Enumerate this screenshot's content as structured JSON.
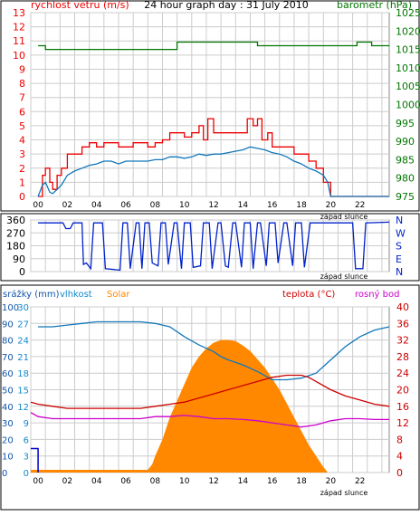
{
  "chart_data": [
    {
      "type": "line",
      "title": "24 hour graph day : 31 July 2010",
      "left_axis_label": "rychlost vetru (m/s)",
      "right_axis_label": "barometr (hPa)",
      "left_ticks": [
        "0",
        "1",
        "2",
        "3",
        "4",
        "5",
        "6",
        "7",
        "8",
        "9",
        "10",
        "11",
        "12",
        "13"
      ],
      "right_ticks": [
        "975",
        "980",
        "985",
        "990",
        "995",
        "1000",
        "1005",
        "1010",
        "1015",
        "1020",
        "1025"
      ],
      "x_ticks": [
        "00",
        "02",
        "04",
        "06",
        "08",
        "10",
        "12",
        "14",
        "16",
        "18",
        "20",
        "22"
      ],
      "sunset_label": "západ slunce",
      "colors": {
        "gust": "#ee0000",
        "wind": "#1177bb",
        "pressure": "#007700",
        "grid": "#cccccc",
        "left_axis": "#ee0000",
        "right_axis": "#007700"
      },
      "series": [
        {
          "name": "pressure",
          "x": [
            0,
            0.3,
            0.5,
            9.3,
            9.5,
            14.7,
            15,
            17.3,
            17.6,
            20.5,
            20.8,
            21.5,
            21.8,
            22.5,
            22.8,
            24
          ],
          "y": [
            1016,
            1016,
            1015,
            1015,
            1017,
            1017,
            1016,
            1016,
            1016,
            1016,
            1016,
            1016,
            1017,
            1017,
            1016,
            1016
          ]
        },
        {
          "name": "gust",
          "x": [
            0,
            0.3,
            0.5,
            0.8,
            1,
            1.3,
            1.6,
            2,
            2.5,
            3,
            3.5,
            4,
            4.5,
            5,
            5.5,
            6,
            6.5,
            7,
            7.5,
            8,
            8.5,
            9,
            9.5,
            10,
            10.5,
            11,
            11.3,
            11.6,
            12,
            12.5,
            13,
            13.5,
            14,
            14.3,
            14.7,
            15,
            15.3,
            15.7,
            16,
            16.5,
            17,
            17.5,
            18,
            18.5,
            19,
            19.5,
            20,
            20.3,
            24
          ],
          "y": [
            0,
            1.5,
            2,
            1,
            0.5,
            1.5,
            2,
            3,
            3,
            3.5,
            3.8,
            3.5,
            3.8,
            3.8,
            3.5,
            3.5,
            3.8,
            3.8,
            3.5,
            3.8,
            4,
            4.5,
            4.5,
            4.2,
            4.5,
            5,
            4,
            5.5,
            4.5,
            4.5,
            4.5,
            4.5,
            4.5,
            5.5,
            5,
            5.5,
            4,
            4.5,
            3.5,
            3.5,
            3.5,
            3,
            3,
            2.5,
            2,
            1,
            0,
            0,
            0
          ]
        },
        {
          "name": "wind",
          "x": [
            0,
            0.3,
            0.5,
            0.8,
            1,
            1.3,
            1.6,
            2,
            2.5,
            3,
            3.5,
            4,
            4.5,
            5,
            5.5,
            6,
            6.5,
            7,
            7.5,
            8,
            8.5,
            9,
            9.5,
            10,
            10.5,
            11,
            11.5,
            12,
            12.5,
            13,
            13.5,
            14,
            14.5,
            15,
            15.5,
            16,
            16.5,
            17,
            17.5,
            18,
            18.5,
            19,
            19.5,
            19.8,
            20,
            24
          ],
          "y": [
            0,
            0.8,
            1,
            0.3,
            0.2,
            0.5,
            0.8,
            1.5,
            1.8,
            2,
            2.2,
            2.3,
            2.5,
            2.5,
            2.3,
            2.5,
            2.5,
            2.5,
            2.5,
            2.6,
            2.6,
            2.8,
            2.8,
            2.7,
            2.8,
            3,
            2.9,
            3,
            3,
            3.1,
            3.2,
            3.3,
            3.5,
            3.4,
            3.3,
            3.1,
            3,
            2.8,
            2.5,
            2.3,
            2,
            1.8,
            1.5,
            1,
            0,
            0
          ]
        }
      ]
    },
    {
      "type": "line",
      "left_ticks": [
        "360",
        "270",
        "180",
        "90",
        "0"
      ],
      "right_ticks": [
        "N",
        "W",
        "S",
        "E",
        "N"
      ],
      "sunset_label": "západ slunce",
      "colors": {
        "direction": "#0022cc"
      },
      "series": [
        {
          "name": "direction",
          "x": [
            0,
            1.7,
            1.9,
            2.2,
            2.4,
            2.8,
            3,
            3.1,
            3.3,
            3.6,
            3.8,
            4.4,
            4.6,
            5.6,
            5.8,
            6.1,
            6.3,
            6.7,
            6.9,
            7.1,
            7.3,
            7.6,
            7.8,
            8.2,
            8.4,
            8.7,
            8.9,
            9.3,
            9.5,
            9.8,
            10,
            10.4,
            10.6,
            11.1,
            11.3,
            11.7,
            11.9,
            12.3,
            12.5,
            12.8,
            13,
            13.3,
            13.5,
            13.9,
            14.1,
            14.5,
            14.7,
            15,
            15.2,
            15.6,
            15.8,
            16.2,
            16.4,
            16.8,
            17,
            17.4,
            17.6,
            18,
            18.2,
            18.6,
            18.8,
            19.3,
            19.5,
            19.9,
            20.2,
            21.5,
            21.7,
            22.2,
            22.4,
            24
          ],
          "y": [
            340,
            340,
            300,
            300,
            340,
            340,
            340,
            50,
            60,
            20,
            340,
            340,
            20,
            10,
            340,
            340,
            20,
            340,
            340,
            20,
            340,
            340,
            60,
            40,
            340,
            340,
            50,
            340,
            340,
            20,
            340,
            340,
            30,
            40,
            340,
            340,
            20,
            340,
            340,
            40,
            30,
            340,
            340,
            30,
            340,
            340,
            20,
            340,
            340,
            40,
            340,
            340,
            60,
            340,
            340,
            40,
            340,
            340,
            30,
            340,
            340,
            340,
            340,
            340,
            340,
            340,
            20,
            20,
            340,
            345
          ]
        }
      ]
    },
    {
      "type": "area",
      "legend": [
        "srážky (mm)",
        "vlhkost",
        "Solar",
        "teplota (°C)",
        "rosný bod"
      ],
      "left_ticks_rain": [
        "0",
        "10",
        "20",
        "30",
        "40",
        "50",
        "60",
        "70",
        "80",
        "90",
        "100"
      ],
      "left_ticks_humidity": [
        "0",
        "3",
        "6",
        "9",
        "12",
        "15",
        "18",
        "21",
        "24",
        "27",
        "30"
      ],
      "right_ticks_temp": [
        "0",
        "4",
        "8",
        "12",
        "16",
        "20",
        "24",
        "28",
        "32",
        "36",
        "40"
      ],
      "x_ticks": [
        "00",
        "02",
        "04",
        "06",
        "08",
        "10",
        "12",
        "14",
        "16",
        "18",
        "20",
        "22"
      ],
      "sunset_label": "západ slunce",
      "colors": {
        "rain": "#0000cc",
        "humidity": "#1177bb",
        "solar": "#ff8800",
        "temperature": "#cc0000",
        "dewpoint": "#cc00cc",
        "rain_axis": "#1155aa",
        "humidity_axis": "#1188cc",
        "temp_axis": "#cc0000"
      },
      "series": [
        {
          "name": "srážky (mm)",
          "x": [
            -0.5,
            0
          ],
          "y": [
            14.5,
            14.5
          ]
        },
        {
          "name": "vlhkost",
          "x": [
            0,
            1,
            2,
            3,
            4,
            5,
            6,
            7,
            8,
            9,
            10,
            11,
            12,
            12.5,
            13,
            14,
            15,
            16,
            17,
            18,
            19,
            20,
            21,
            22,
            23,
            24
          ],
          "y": [
            88,
            88,
            89,
            90,
            91,
            91,
            91,
            91,
            90,
            88,
            82,
            77,
            73,
            70,
            68,
            65,
            61,
            56,
            56,
            57,
            60,
            68,
            76,
            82,
            86,
            88
          ]
        },
        {
          "name": "Solar",
          "x": [
            -0.5,
            7.5,
            7.8,
            8,
            8.5,
            9,
            9.5,
            10,
            10.5,
            11,
            11.5,
            12,
            12.5,
            13,
            13.5,
            14,
            14.5,
            15,
            15.5,
            16,
            16.5,
            17,
            17.5,
            18,
            18.5,
            19,
            19.5,
            19.8,
            24
          ],
          "y": [
            0.5,
            0.5,
            1.5,
            3,
            6,
            10,
            13,
            16,
            19,
            21,
            22.5,
            23.5,
            24,
            24,
            23.8,
            23,
            22,
            20.5,
            19,
            17,
            15,
            12.5,
            10,
            7.5,
            5,
            3,
            1,
            0,
            0
          ]
        },
        {
          "name": "teplota (°C)",
          "x": [
            -0.5,
            0,
            1,
            2,
            3,
            4,
            5,
            6,
            7,
            8,
            9,
            10,
            11,
            12,
            13,
            14,
            15,
            16,
            17,
            18,
            18.5,
            19,
            20,
            21,
            22,
            23,
            24
          ],
          "y": [
            17,
            16.5,
            16,
            15.5,
            15.5,
            15.5,
            15.5,
            15.5,
            15.5,
            16,
            16.5,
            17,
            18,
            19,
            20,
            21,
            22,
            23,
            23.5,
            23.5,
            23,
            22,
            20,
            18.5,
            17.5,
            16.5,
            16
          ]
        },
        {
          "name": "rosný bod",
          "x": [
            -0.5,
            0,
            1,
            2,
            3,
            4,
            5,
            6,
            7,
            8,
            9,
            10,
            11,
            12,
            13,
            14,
            15,
            16,
            17,
            18,
            19,
            20,
            21,
            22,
            23,
            24
          ],
          "y": [
            14.5,
            13.5,
            13,
            13,
            13,
            13,
            13,
            13,
            13,
            13.5,
            13.5,
            13.8,
            13.5,
            13,
            13,
            12.8,
            12.5,
            12,
            11.5,
            11,
            11.5,
            12.5,
            13,
            13,
            12.8,
            12.8
          ]
        }
      ]
    }
  ]
}
